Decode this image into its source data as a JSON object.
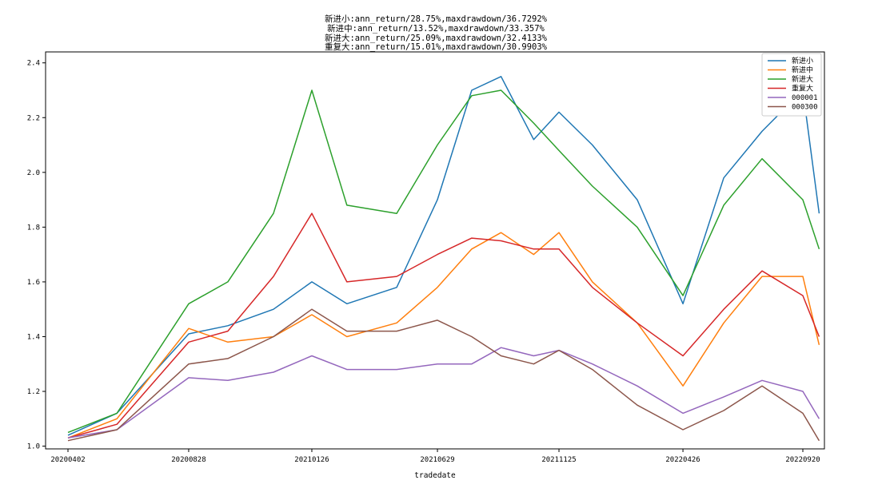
{
  "chart_data": {
    "type": "line",
    "title_lines": [
      "新进小:ann_return/28.75%,maxdrawdown/36.7292%",
      "新进中:ann_return/13.52%,maxdrawdown/33.357%",
      "新进大:ann_return/25.09%,maxdrawdown/32.4133%",
      "重复大:ann_return/15.01%,maxdrawdown/30.9903%"
    ],
    "xlabel": "tradedate",
    "ylabel": "",
    "x_ticks": [
      "20200402",
      "20200828",
      "20210126",
      "20210629",
      "20211125",
      "20220426",
      "20220920"
    ],
    "y_ticks": [
      "1.0",
      "1.2",
      "1.4",
      "1.6",
      "1.8",
      "2.0",
      "2.2",
      "2.4"
    ],
    "ylim": [
      0.99,
      2.44
    ],
    "grid": false,
    "legend_position": "top-right",
    "series": [
      {
        "name": "新进小",
        "color": "#1f77b4",
        "x": [
          "20200402",
          "20200601",
          "20200828",
          "20201015",
          "20201210",
          "20210126",
          "20210310",
          "20210510",
          "20210629",
          "20210810",
          "20210915",
          "20211025",
          "20211125",
          "20220105",
          "20220301",
          "20220426",
          "20220615",
          "20220801",
          "20220920",
          "20221010"
        ],
        "values": [
          1.04,
          1.12,
          1.41,
          1.44,
          1.5,
          1.6,
          1.52,
          1.58,
          1.9,
          2.3,
          2.35,
          2.12,
          2.22,
          2.1,
          1.9,
          1.52,
          1.98,
          2.15,
          2.3,
          1.85
        ]
      },
      {
        "name": "新进中",
        "color": "#ff7f0e",
        "x": [
          "20200402",
          "20200601",
          "20200828",
          "20201015",
          "20201210",
          "20210126",
          "20210310",
          "20210510",
          "20210629",
          "20210810",
          "20210915",
          "20211025",
          "20211125",
          "20220105",
          "20220301",
          "20220426",
          "20220615",
          "20220801",
          "20220920",
          "20221010"
        ],
        "values": [
          1.03,
          1.1,
          1.43,
          1.38,
          1.4,
          1.48,
          1.4,
          1.45,
          1.58,
          1.72,
          1.78,
          1.7,
          1.78,
          1.6,
          1.45,
          1.22,
          1.45,
          1.62,
          1.62,
          1.37
        ]
      },
      {
        "name": "新进大",
        "color": "#2ca02c",
        "x": [
          "20200402",
          "20200601",
          "20200828",
          "20201015",
          "20201210",
          "20210126",
          "20210310",
          "20210510",
          "20210629",
          "20210810",
          "20210915",
          "20211025",
          "20211125",
          "20220105",
          "20220301",
          "20220426",
          "20220615",
          "20220801",
          "20220920",
          "20221010"
        ],
        "values": [
          1.05,
          1.12,
          1.52,
          1.6,
          1.85,
          2.3,
          1.88,
          1.85,
          2.1,
          2.28,
          2.3,
          2.18,
          2.08,
          1.95,
          1.8,
          1.55,
          1.88,
          2.05,
          1.9,
          1.72
        ]
      },
      {
        "name": "重复大",
        "color": "#d62728",
        "x": [
          "20200402",
          "20200601",
          "20200828",
          "20201015",
          "20201210",
          "20210126",
          "20210310",
          "20210510",
          "20210629",
          "20210810",
          "20210915",
          "20211025",
          "20211125",
          "20220105",
          "20220301",
          "20220426",
          "20220615",
          "20220801",
          "20220920",
          "20221010"
        ],
        "values": [
          1.03,
          1.08,
          1.38,
          1.42,
          1.62,
          1.85,
          1.6,
          1.62,
          1.7,
          1.76,
          1.75,
          1.72,
          1.72,
          1.58,
          1.45,
          1.33,
          1.5,
          1.64,
          1.55,
          1.4
        ]
      },
      {
        "name": "000001",
        "color": "#9467bd",
        "x": [
          "20200402",
          "20200601",
          "20200828",
          "20201015",
          "20201210",
          "20210126",
          "20210310",
          "20210510",
          "20210629",
          "20210810",
          "20210915",
          "20211025",
          "20211125",
          "20220105",
          "20220301",
          "20220426",
          "20220615",
          "20220801",
          "20220920",
          "20221010"
        ],
        "values": [
          1.03,
          1.06,
          1.25,
          1.24,
          1.27,
          1.33,
          1.28,
          1.28,
          1.3,
          1.3,
          1.36,
          1.33,
          1.35,
          1.3,
          1.22,
          1.12,
          1.18,
          1.24,
          1.2,
          1.1
        ]
      },
      {
        "name": "000300",
        "color": "#8c564b",
        "x": [
          "20200402",
          "20200601",
          "20200828",
          "20201015",
          "20201210",
          "20210126",
          "20210310",
          "20210510",
          "20210629",
          "20210810",
          "20210915",
          "20211025",
          "20211125",
          "20220105",
          "20220301",
          "20220426",
          "20220615",
          "20220801",
          "20220920",
          "20221010"
        ],
        "values": [
          1.02,
          1.06,
          1.3,
          1.32,
          1.4,
          1.5,
          1.42,
          1.42,
          1.46,
          1.4,
          1.33,
          1.3,
          1.35,
          1.28,
          1.15,
          1.06,
          1.13,
          1.22,
          1.12,
          1.02
        ]
      }
    ]
  }
}
